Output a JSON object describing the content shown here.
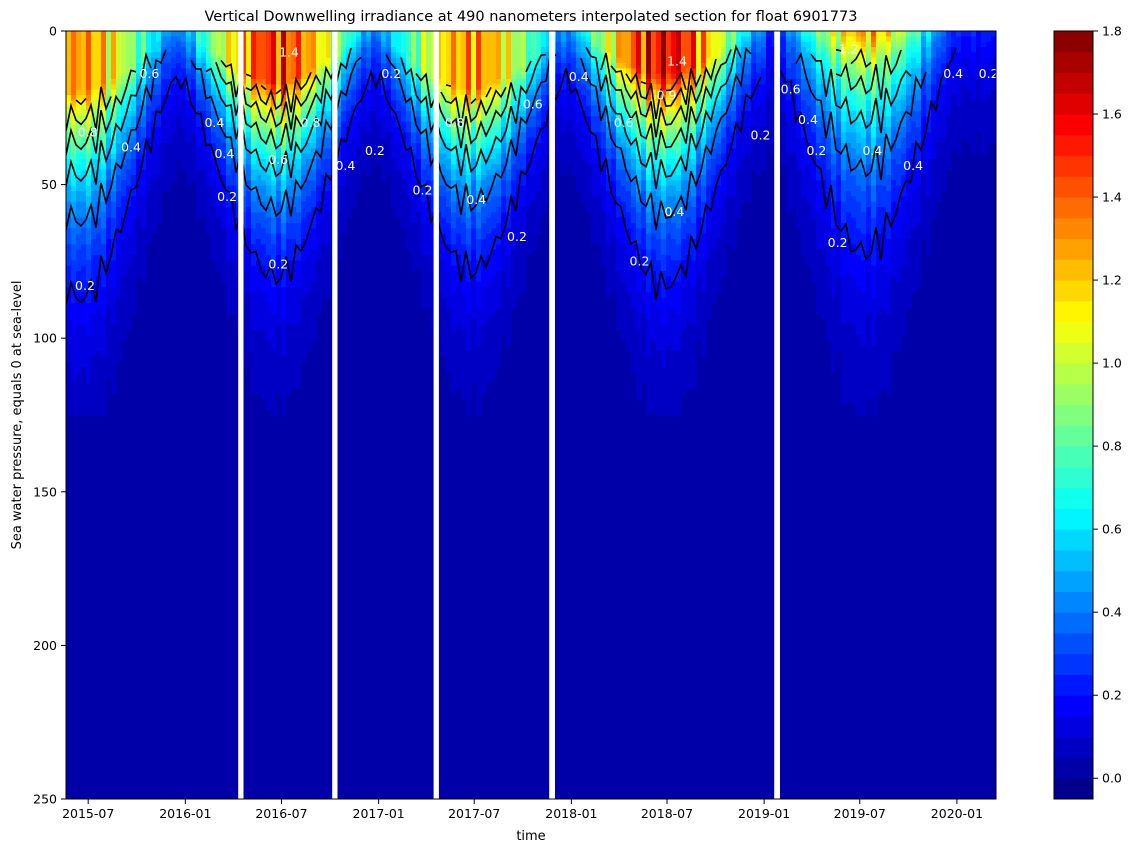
{
  "chart_data": {
    "type": "heatmap",
    "title": "Vertical Downwelling irradiance at 490 nanometers interpolated section for float 6901773",
    "xlabel": "time",
    "ylabel": "Sea water pressure, equals 0 at sea-level",
    "x_range": [
      "2015-05-20",
      "2020-03-15"
    ],
    "xticks": [
      "2015-07",
      "2016-01",
      "2016-07",
      "2017-01",
      "2017-07",
      "2018-01",
      "2018-07",
      "2019-01",
      "2019-07",
      "2020-01"
    ],
    "ylim": [
      250,
      0
    ],
    "yticks": [
      0,
      50,
      100,
      150,
      200,
      250
    ],
    "colorbar": {
      "range": [
        -0.05,
        1.8
      ],
      "ticks": [
        "0.0",
        "0.2",
        "0.4",
        "0.6",
        "0.8",
        "1.0",
        "1.2",
        "1.4",
        "1.6",
        "1.8"
      ],
      "levels": 37,
      "colormap": "jet"
    },
    "data_gaps": [
      [
        "2016-04-10",
        "2016-04-20"
      ],
      [
        "2016-10-05",
        "2016-10-15"
      ],
      [
        "2017-04-15",
        "2017-04-25"
      ],
      [
        "2017-11-20",
        "2017-12-01"
      ],
      [
        "2019-01-20",
        "2019-01-31"
      ]
    ],
    "seasons": [
      {
        "peak": "2015-06-15",
        "surface_max": 1.3,
        "contours": [
          {
            "level": 0.2,
            "depth": 87
          },
          {
            "level": 0.4,
            "depth": 62
          }
        ]
      },
      {
        "peak": "2016-06-20",
        "surface_max": 1.5,
        "contours": [
          {
            "level": 0.2,
            "depth": 80
          },
          {
            "level": 0.4,
            "depth": 58
          }
        ]
      },
      {
        "peak": "2017-06-25",
        "surface_max": 1.3,
        "contours": [
          {
            "level": 0.2,
            "depth": 78
          },
          {
            "level": 0.4,
            "depth": 56
          }
        ]
      },
      {
        "peak": "2018-06-25",
        "surface_max": 1.6,
        "contours": [
          {
            "level": 0.2,
            "depth": 83
          },
          {
            "level": 0.4,
            "depth": 60
          }
        ]
      },
      {
        "peak": "2019-07-10",
        "surface_max": 1.3,
        "contours": [
          {
            "level": 0.2,
            "depth": 72
          },
          {
            "level": 0.4,
            "depth": 45
          }
        ]
      }
    ],
    "contour_labels": [
      {
        "text": "0.2",
        "x": "2015-06-25",
        "y": 83
      },
      {
        "text": "0.4",
        "x": "2015-09-20",
        "y": 38
      },
      {
        "text": "0.6",
        "x": "2015-10-25",
        "y": 14
      },
      {
        "text": "0.8",
        "x": "2015-06-30",
        "y": 33
      },
      {
        "text": "0.4",
        "x": "2016-02-25",
        "y": 30
      },
      {
        "text": "0.4",
        "x": "2016-03-15",
        "y": 40
      },
      {
        "text": "0.2",
        "x": "2016-03-20",
        "y": 54
      },
      {
        "text": "1.4",
        "x": "2016-07-15",
        "y": 7
      },
      {
        "text": "0.8",
        "x": "2016-08-25",
        "y": 30
      },
      {
        "text": "0.6",
        "x": "2016-06-25",
        "y": 42
      },
      {
        "text": "0.2",
        "x": "2016-06-25",
        "y": 76
      },
      {
        "text": "0.2",
        "x": "2017-01-25",
        "y": 14
      },
      {
        "text": "0.2",
        "x": "2016-12-25",
        "y": 39
      },
      {
        "text": "0.4",
        "x": "2016-10-30",
        "y": 44
      },
      {
        "text": "0.2",
        "x": "2017-03-25",
        "y": 52
      },
      {
        "text": "0.8",
        "x": "2017-05-25",
        "y": 30
      },
      {
        "text": "0.6",
        "x": "2017-10-20",
        "y": 24
      },
      {
        "text": "0.4",
        "x": "2017-07-05",
        "y": 55
      },
      {
        "text": "0.2",
        "x": "2017-09-20",
        "y": 67
      },
      {
        "text": "0.4",
        "x": "2018-01-15",
        "y": 15
      },
      {
        "text": "1.4",
        "x": "2018-07-20",
        "y": 10
      },
      {
        "text": "0.6",
        "x": "2018-04-10",
        "y": 30
      },
      {
        "text": "0.9",
        "x": "2018-06-30",
        "y": 21
      },
      {
        "text": "0.4",
        "x": "2018-07-15",
        "y": 59
      },
      {
        "text": "0.2",
        "x": "2018-05-10",
        "y": 75
      },
      {
        "text": "0.2",
        "x": "2018-12-25",
        "y": 34
      },
      {
        "text": "0.6",
        "x": "2019-02-20",
        "y": 19
      },
      {
        "text": "0.4",
        "x": "2019-03-25",
        "y": 29
      },
      {
        "text": "0.2",
        "x": "2019-04-10",
        "y": 39
      },
      {
        "text": "0.4",
        "x": "2019-07-25",
        "y": 39
      },
      {
        "text": "0.4",
        "x": "2019-10-10",
        "y": 44
      },
      {
        "text": "0.2",
        "x": "2019-05-20",
        "y": 69
      },
      {
        "text": "1.2",
        "x": "2019-06-10",
        "y": 6
      },
      {
        "text": "0.4",
        "x": "2019-12-25",
        "y": 14
      },
      {
        "text": "0.2",
        "x": "2020-03-01",
        "y": 14
      }
    ]
  }
}
